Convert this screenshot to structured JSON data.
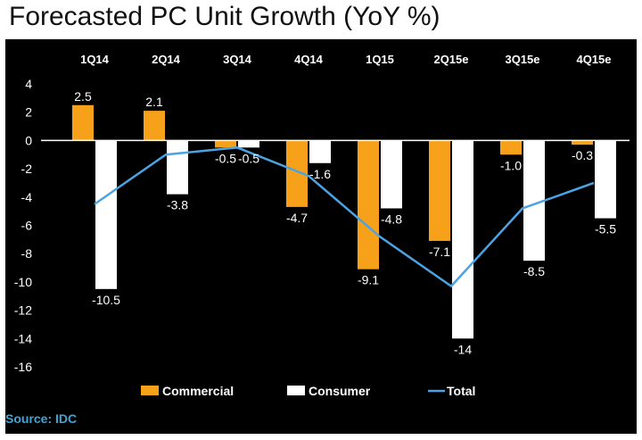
{
  "title": "Forecasted PC Unit Growth (YoY %)",
  "source": "Source: IDC",
  "colors": {
    "background": "#000000",
    "commercial": "#F7A11A",
    "consumer": "#FFFFFF",
    "total": "#4BA3E3",
    "source": "#3FA7D6"
  },
  "chart_data": {
    "type": "bar",
    "title": "Forecasted PC Unit Growth (YoY %)",
    "xlabel": "",
    "ylabel": "",
    "ylim": [
      -16,
      4
    ],
    "yticks": [
      "4",
      "2",
      "0",
      "-2",
      "-4",
      "-6",
      "-8",
      "-10",
      "-12",
      "-14",
      "-16"
    ],
    "ytick_values": [
      4,
      2,
      0,
      -2,
      -4,
      -6,
      -8,
      -10,
      -12,
      -14,
      -16
    ],
    "categories": [
      "1Q14",
      "2Q14",
      "3Q14",
      "4Q14",
      "1Q15",
      "2Q15e",
      "3Q15e",
      "4Q15e"
    ],
    "series": [
      {
        "name": "Commercial",
        "kind": "bar",
        "values": [
          2.5,
          2.1,
          -0.5,
          -4.7,
          -9.1,
          -7.1,
          -1.0,
          -0.3
        ],
        "labels": [
          "2.5",
          "2.1",
          "-0.5",
          "-4.7",
          "-9.1",
          "-7.1",
          "-1.0",
          "-0.3"
        ]
      },
      {
        "name": "Consumer",
        "kind": "bar",
        "values": [
          -10.5,
          -3.8,
          -0.5,
          -1.6,
          -4.8,
          -14,
          -8.5,
          -5.5
        ],
        "labels": [
          "-10.5",
          "-3.8",
          "-0.5",
          "-1.6",
          "-4.8",
          "-14",
          "-8.5",
          "-5.5"
        ]
      },
      {
        "name": "Total",
        "kind": "line",
        "values": [
          -4.5,
          -1.0,
          -0.5,
          -2.5,
          -6.8,
          -10.3,
          -4.8,
          -3.0
        ]
      }
    ],
    "legend": {
      "position": "bottom",
      "items": [
        "Commercial",
        "Consumer",
        "Total"
      ]
    },
    "grid": false
  }
}
